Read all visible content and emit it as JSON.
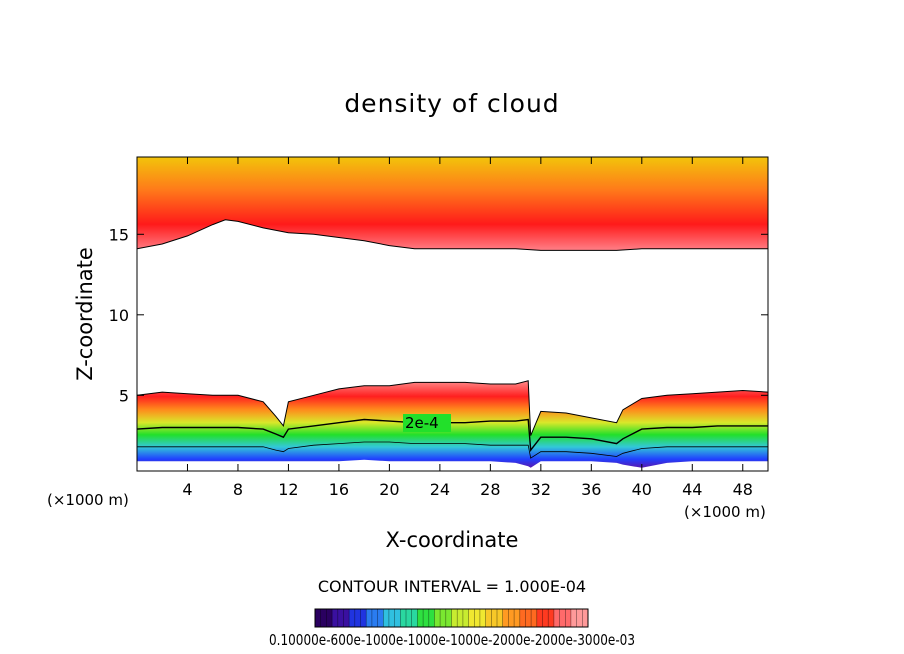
{
  "chart_data": {
    "type": "contour",
    "title": "density of cloud",
    "xlabel": "X-coordinate",
    "ylabel": "Z-coordinate",
    "x_unit_left": "(×1000 m)",
    "x_unit_right": "(×1000 m)",
    "xlim": [
      0,
      50
    ],
    "ylim": [
      0.3,
      19.8
    ],
    "x_ticks": [
      4,
      8,
      12,
      16,
      20,
      24,
      28,
      32,
      36,
      40,
      44,
      48
    ],
    "x_tick_labels": [
      "4",
      "8",
      "12",
      "16",
      "20",
      "24",
      "28",
      "32",
      "36",
      "40",
      "44",
      "48"
    ],
    "y_ticks": [
      5,
      10,
      15
    ],
    "y_tick_labels": [
      "5",
      "10",
      "15"
    ],
    "contour_interval_text": "CONTOUR INTERVAL = 1.000E-04",
    "contour_label": "2e-4",
    "colorbar_labels_text": "0.10000e-600e-1000e-1000e-1000e-2000e-2000e-3000e-03",
    "upper_layer": {
      "x": [
        0,
        2,
        4,
        6,
        7,
        8,
        10,
        12,
        14,
        16,
        18,
        20,
        22,
        24,
        26,
        28,
        30,
        32,
        34,
        36,
        38,
        40,
        42,
        44,
        46,
        48,
        50
      ],
      "bottom": [
        14.1,
        14.4,
        14.9,
        15.6,
        15.9,
        15.8,
        15.4,
        15.1,
        15.0,
        14.8,
        14.6,
        14.3,
        14.1,
        14.1,
        14.1,
        14.1,
        14.1,
        14.0,
        14.0,
        14.0,
        14.0,
        14.1,
        14.1,
        14.1,
        14.1,
        14.1,
        14.1
      ],
      "core": [
        16.1,
        16.5,
        17.2,
        17.9,
        18.1,
        17.8,
        17.1,
        16.7,
        16.5,
        16.3,
        16.1,
        16.0,
        15.9,
        15.9,
        15.9,
        15.9,
        15.9,
        15.9,
        15.9,
        15.9,
        15.9,
        15.9,
        15.9,
        15.9,
        16.0,
        16.1,
        16.3
      ]
    },
    "lower_layer": {
      "x": [
        0,
        2,
        4,
        6,
        8,
        10,
        11,
        11.6,
        12,
        14,
        16,
        18,
        20,
        22,
        24,
        26,
        28,
        30,
        31,
        31.2,
        32,
        34,
        36,
        38,
        38.5,
        40,
        42,
        44,
        46,
        48,
        50
      ],
      "top": [
        5.0,
        5.2,
        5.1,
        5.0,
        5.0,
        4.6,
        3.7,
        3.1,
        4.6,
        5.0,
        5.4,
        5.6,
        5.6,
        5.8,
        5.8,
        5.8,
        5.7,
        5.7,
        5.9,
        2.5,
        4.0,
        3.9,
        3.6,
        3.3,
        4.1,
        4.8,
        5.0,
        5.1,
        5.2,
        5.3,
        5.2
      ],
      "c2e4": [
        2.9,
        3.0,
        3.0,
        3.0,
        3.0,
        2.9,
        2.6,
        2.4,
        2.9,
        3.1,
        3.3,
        3.5,
        3.4,
        3.3,
        3.3,
        3.3,
        3.4,
        3.4,
        3.5,
        1.6,
        2.4,
        2.4,
        2.3,
        2.0,
        2.3,
        2.9,
        3.0,
        3.0,
        3.1,
        3.1,
        3.1
      ],
      "c1e4": [
        1.8,
        1.8,
        1.8,
        1.8,
        1.8,
        1.8,
        1.6,
        1.5,
        1.7,
        1.9,
        2.0,
        2.1,
        2.1,
        2.0,
        2.0,
        2.0,
        1.9,
        1.9,
        1.9,
        1.1,
        1.5,
        1.5,
        1.4,
        1.2,
        1.4,
        1.7,
        1.8,
        1.8,
        1.8,
        1.8,
        1.8
      ],
      "bottom": [
        0.9,
        0.9,
        0.9,
        0.9,
        0.9,
        0.9,
        0.9,
        0.9,
        0.9,
        0.9,
        0.9,
        1.0,
        0.9,
        0.9,
        0.9,
        0.9,
        0.9,
        0.8,
        0.6,
        0.5,
        0.9,
        0.9,
        0.9,
        0.8,
        0.7,
        0.5,
        0.8,
        0.9,
        0.9,
        0.9,
        0.9
      ]
    },
    "colors": {
      "upper_top": "#f2c40a",
      "upper_mid": "#ff7a1a",
      "upper_core": "#ff1a1a",
      "upper_edge": "#ff7f87",
      "lower_edge": "#ff8a8a",
      "lower_red": "#ff1f1f",
      "lower_orange": "#ff8a1c",
      "lower_yellow": "#d9e82a",
      "lower_green": "#22e02a",
      "lower_cyan": "#33c8d8",
      "lower_blue": "#2040ff",
      "lower_violet": "#5a18b0",
      "colorbar": [
        "#2a0060",
        "#3a10a0",
        "#2034e0",
        "#2a7cf0",
        "#30c0e0",
        "#2ad8a0",
        "#2ee040",
        "#7ae830",
        "#c8ec30",
        "#f0e830",
        "#f8c828",
        "#ff9a22",
        "#ff6a20",
        "#ff3a20",
        "#ff6a6a",
        "#ff9a9a"
      ]
    }
  }
}
